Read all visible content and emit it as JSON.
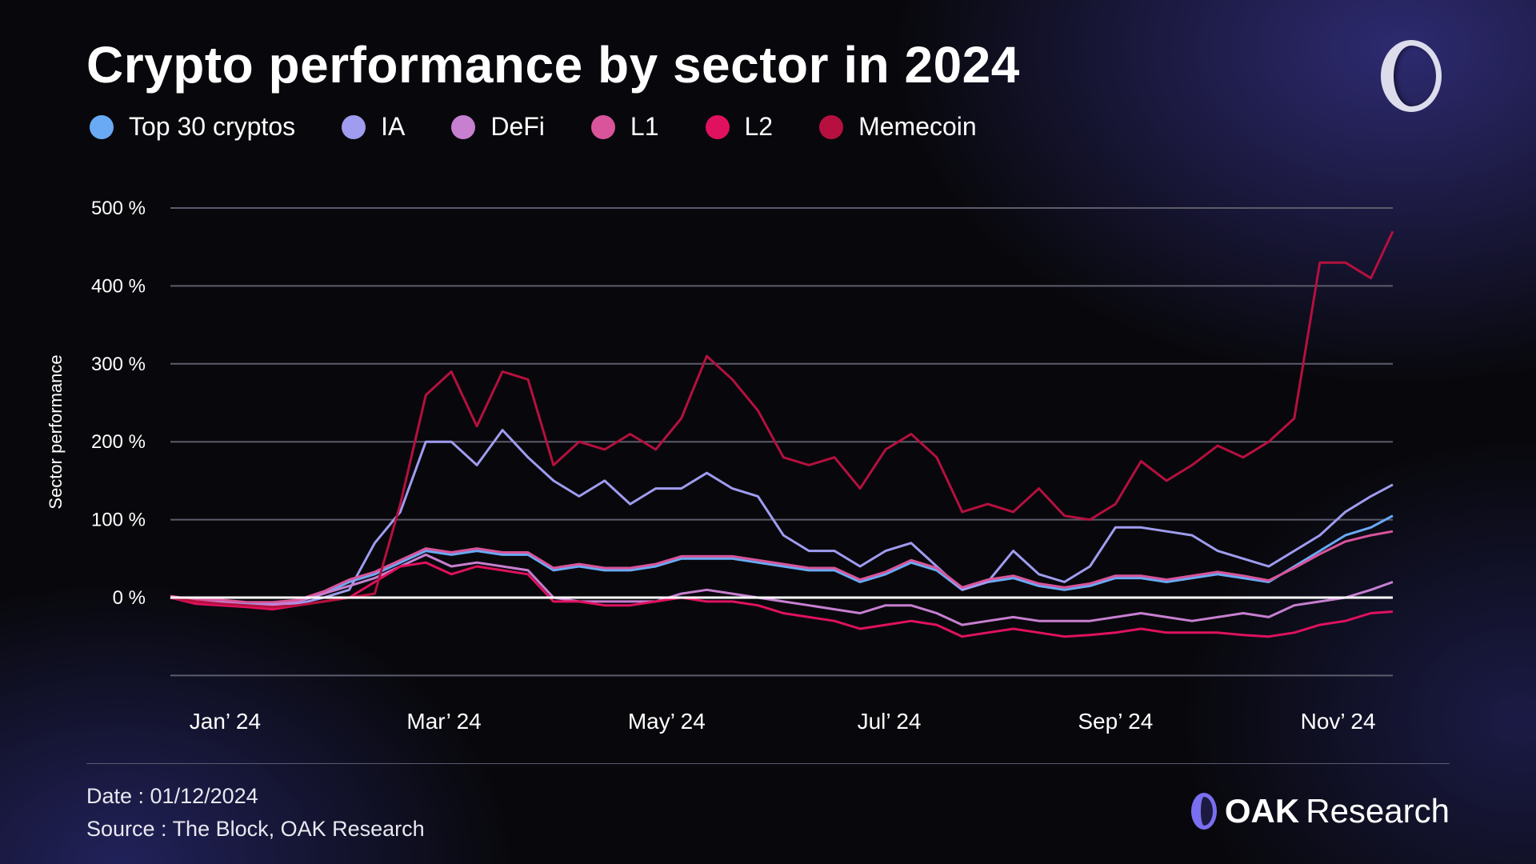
{
  "title": "Crypto performance by sector in 2024",
  "footer": {
    "date": "Date : 01/12/2024",
    "source": "Source : The Block, OAK Research"
  },
  "brand": {
    "name_bold": "OAK",
    "name_light": "Research",
    "logo_icon": "oak-ring-logo"
  },
  "chart_data": {
    "type": "line",
    "title": "Crypto performance by sector in 2024",
    "ylabel": "Sector performance",
    "xlabel": "",
    "ylim": [
      -100,
      500
    ],
    "yticks": [
      0,
      100,
      200,
      300,
      400,
      500
    ],
    "ytick_labels": [
      "0 %",
      "100 %",
      "200 %",
      "300 %",
      "400 %",
      "500 %"
    ],
    "xlim": [
      "2024-01-01",
      "2024-12-01"
    ],
    "xticks": [
      "2024-01-16",
      "2024-03-16",
      "2024-05-16",
      "2024-07-16",
      "2024-09-16",
      "2024-11-16"
    ],
    "xtick_labels": [
      "Jan’ 24",
      "Mar’ 24",
      "May’ 24",
      "Jul’ 24",
      "Sep’ 24",
      "Nov’ 24"
    ],
    "grid": true,
    "zero_line": true,
    "legend_position": "top-left",
    "x": [
      "2024-01-01",
      "2024-01-08",
      "2024-01-15",
      "2024-01-22",
      "2024-01-29",
      "2024-02-05",
      "2024-02-12",
      "2024-02-19",
      "2024-02-26",
      "2024-03-04",
      "2024-03-11",
      "2024-03-18",
      "2024-03-25",
      "2024-04-01",
      "2024-04-08",
      "2024-04-15",
      "2024-04-22",
      "2024-04-29",
      "2024-05-06",
      "2024-05-13",
      "2024-05-20",
      "2024-05-27",
      "2024-06-03",
      "2024-06-10",
      "2024-06-17",
      "2024-06-24",
      "2024-07-01",
      "2024-07-08",
      "2024-07-15",
      "2024-07-22",
      "2024-07-29",
      "2024-08-05",
      "2024-08-12",
      "2024-08-19",
      "2024-08-26",
      "2024-09-02",
      "2024-09-09",
      "2024-09-16",
      "2024-09-23",
      "2024-09-30",
      "2024-10-07",
      "2024-10-14",
      "2024-10-21",
      "2024-10-28",
      "2024-11-04",
      "2024-11-11",
      "2024-11-18",
      "2024-11-25",
      "2024-12-01"
    ],
    "series": [
      {
        "name": "Top 30 cryptos",
        "color": "#6aaaf5",
        "values": [
          0,
          -5,
          -5,
          -8,
          -8,
          -5,
          5,
          20,
          30,
          45,
          60,
          55,
          60,
          55,
          55,
          35,
          40,
          35,
          35,
          40,
          50,
          50,
          50,
          45,
          40,
          35,
          35,
          20,
          30,
          45,
          35,
          10,
          20,
          25,
          15,
          10,
          15,
          25,
          25,
          20,
          25,
          30,
          25,
          20,
          40,
          60,
          80,
          90,
          105
        ]
      },
      {
        "name": "IA",
        "color": "#a09cf0",
        "values": [
          0,
          -5,
          -5,
          -10,
          -8,
          -8,
          0,
          10,
          70,
          110,
          200,
          200,
          170,
          215,
          180,
          150,
          130,
          150,
          120,
          140,
          140,
          160,
          140,
          130,
          80,
          60,
          60,
          40,
          60,
          70,
          40,
          10,
          20,
          60,
          30,
          20,
          40,
          90,
          90,
          85,
          80,
          60,
          50,
          40,
          60,
          80,
          110,
          130,
          145
        ]
      },
      {
        "name": "DeFi",
        "color": "#c77fd0",
        "values": [
          0,
          -5,
          -5,
          -10,
          -10,
          -5,
          5,
          15,
          25,
          40,
          55,
          40,
          45,
          40,
          35,
          0,
          -5,
          -5,
          -5,
          -5,
          5,
          10,
          5,
          0,
          -5,
          -10,
          -15,
          -20,
          -10,
          -10,
          -20,
          -35,
          -30,
          -25,
          -30,
          -30,
          -30,
          -25,
          -20,
          -25,
          -30,
          -25,
          -20,
          -25,
          -10,
          -5,
          0,
          10,
          20
        ]
      },
      {
        "name": "L1",
        "color": "#d9549a",
        "values": [
          2,
          -3,
          -3,
          -6,
          -6,
          -3,
          8,
          23,
          33,
          48,
          63,
          58,
          63,
          58,
          58,
          38,
          43,
          38,
          38,
          43,
          53,
          53,
          53,
          48,
          43,
          38,
          38,
          23,
          33,
          48,
          38,
          13,
          23,
          28,
          18,
          13,
          18,
          28,
          28,
          23,
          28,
          33,
          28,
          22,
          38,
          56,
          72,
          80,
          85
        ]
      },
      {
        "name": "L2",
        "color": "#e0115f",
        "values": [
          0,
          -8,
          -10,
          -12,
          -15,
          -10,
          -5,
          0,
          20,
          40,
          45,
          30,
          40,
          35,
          30,
          -5,
          -5,
          -10,
          -10,
          -5,
          0,
          -5,
          -5,
          -10,
          -20,
          -25,
          -30,
          -40,
          -35,
          -30,
          -35,
          -50,
          -45,
          -40,
          -45,
          -50,
          -48,
          -45,
          -40,
          -45,
          -45,
          -45,
          -48,
          -50,
          -45,
          -35,
          -30,
          -20,
          -18
        ]
      },
      {
        "name": "Memecoin",
        "color": "#b5103f",
        "values": [
          0,
          -5,
          -8,
          -10,
          -12,
          -10,
          -5,
          0,
          5,
          120,
          260,
          290,
          220,
          290,
          280,
          170,
          200,
          190,
          210,
          190,
          230,
          310,
          280,
          240,
          180,
          170,
          180,
          140,
          190,
          210,
          180,
          110,
          120,
          110,
          140,
          105,
          100,
          120,
          175,
          150,
          170,
          195,
          180,
          200,
          230,
          430,
          430,
          410,
          470
        ]
      }
    ]
  }
}
